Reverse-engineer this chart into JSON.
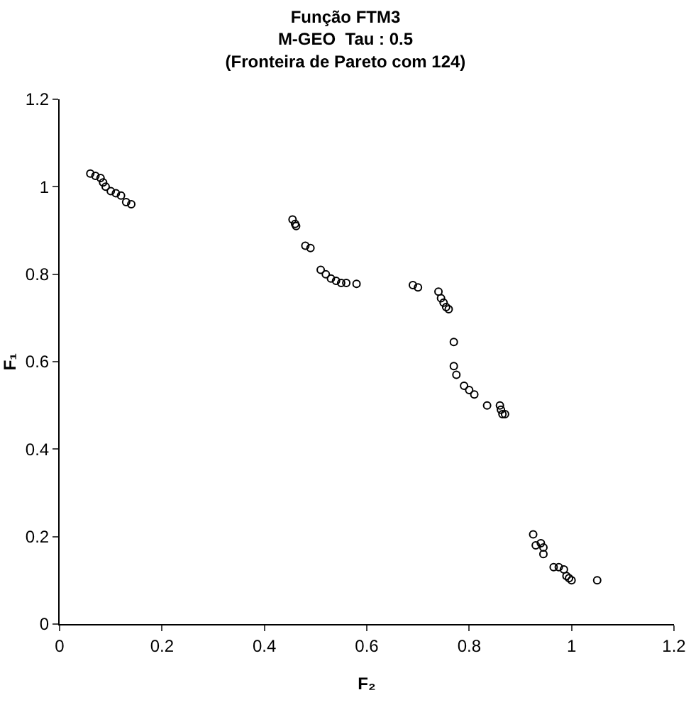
{
  "chart_data": {
    "type": "scatter",
    "title": "Função FTM3\nM-GEO  Tau : 0.5\n(Fronteira de Pareto com 124)",
    "xlabel": "F₂",
    "ylabel": "F₁",
    "x": [
      0.06,
      0.07,
      0.08,
      0.085,
      0.09,
      0.1,
      0.11,
      0.12,
      0.13,
      0.14,
      0.455,
      0.46,
      0.462,
      0.48,
      0.49,
      0.51,
      0.52,
      0.53,
      0.54,
      0.55,
      0.56,
      0.58,
      0.69,
      0.7,
      0.74,
      0.745,
      0.75,
      0.755,
      0.76,
      0.77,
      0.77,
      0.775,
      0.79,
      0.8,
      0.81,
      0.835,
      0.86,
      0.862,
      0.87,
      0.865,
      0.925,
      0.93,
      0.94,
      0.945,
      0.945,
      0.965,
      0.975,
      0.985,
      0.99,
      0.995,
      1.0,
      1.05
    ],
    "values": [
      1.03,
      1.025,
      1.02,
      1.01,
      1.0,
      0.99,
      0.985,
      0.98,
      0.965,
      0.96,
      0.925,
      0.915,
      0.91,
      0.865,
      0.86,
      0.81,
      0.8,
      0.79,
      0.785,
      0.78,
      0.78,
      0.778,
      0.775,
      0.77,
      0.76,
      0.745,
      0.735,
      0.725,
      0.72,
      0.645,
      0.59,
      0.57,
      0.545,
      0.535,
      0.525,
      0.5,
      0.5,
      0.49,
      0.48,
      0.48,
      0.205,
      0.18,
      0.185,
      0.175,
      0.16,
      0.13,
      0.13,
      0.125,
      0.11,
      0.105,
      0.1,
      0.1
    ],
    "color": "#000000",
    "marker": "circle",
    "grid": false,
    "xlim": [
      0,
      1.2
    ],
    "xticks": [
      0,
      0.2,
      0.4,
      0.6,
      0.8,
      1,
      1.2
    ],
    "ylim": [
      0,
      1.2
    ],
    "yticks": [
      0,
      0.2,
      0.4,
      0.6,
      0.8,
      1,
      1.2
    ]
  }
}
